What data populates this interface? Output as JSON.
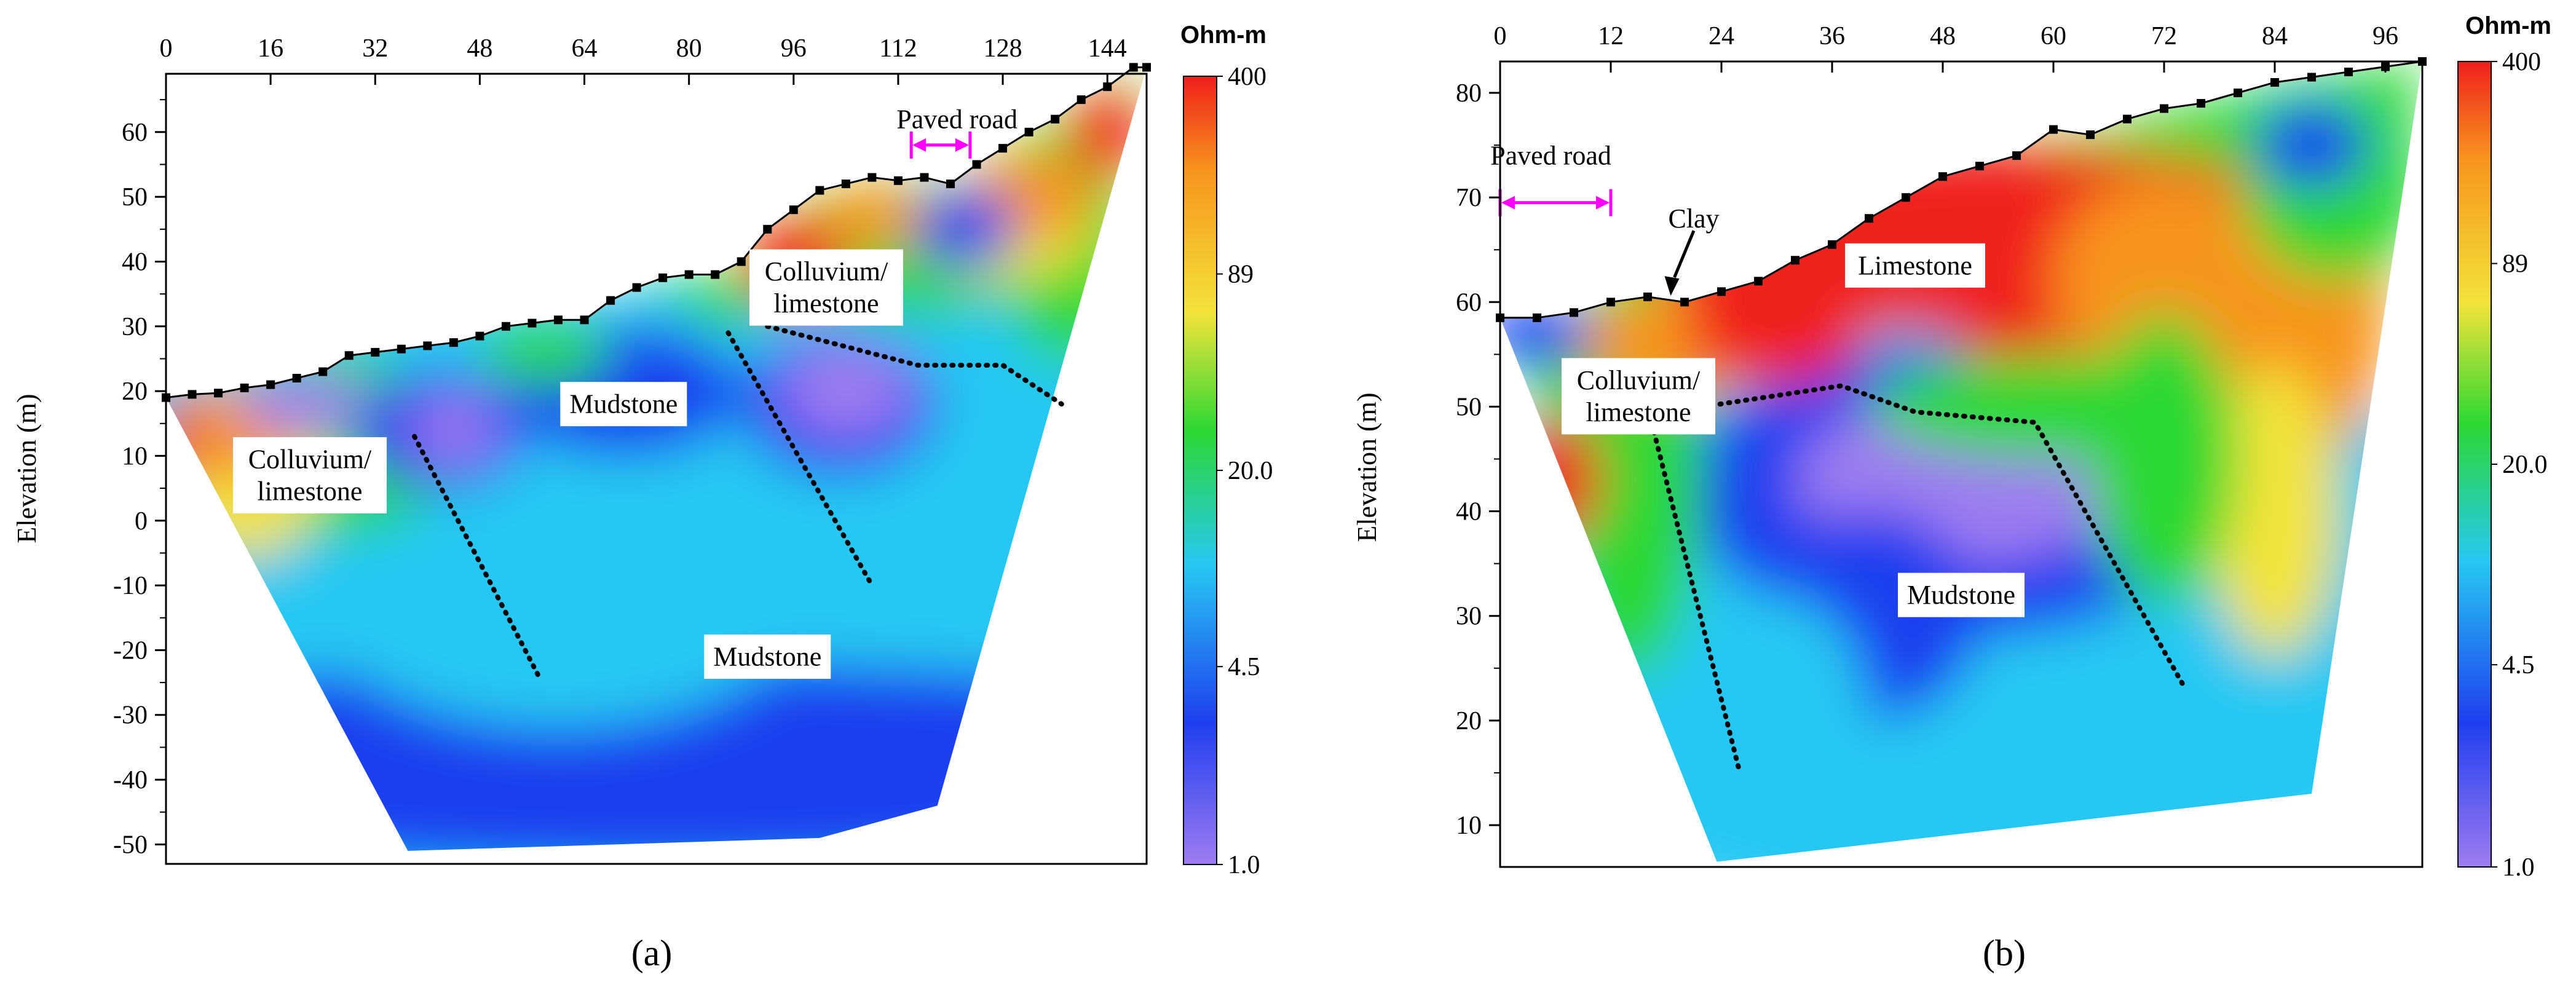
{
  "colors": {
    "violet": "#9e7bf0",
    "blue": "#1f3ff0",
    "cyan": "#27c7f2",
    "green": "#2bd832",
    "yellow": "#f2e33a",
    "orange": "#f7941d",
    "red": "#f0201c",
    "markers": "#000000",
    "road": "#ff00ff",
    "boundary": "#000000"
  },
  "chart_data": [
    {
      "type": "heatmap",
      "panel": "a",
      "caption": "(a)",
      "title": "",
      "xlabel": "",
      "ylabel": "Elevation (m)",
      "xlim": [
        0,
        150
      ],
      "ylim": [
        -53,
        69
      ],
      "x_ticks": [
        0,
        16,
        32,
        48,
        64,
        80,
        96,
        112,
        128,
        144
      ],
      "y_ticks": [
        60,
        50,
        40,
        30,
        20,
        10,
        0,
        -10,
        -20,
        -30,
        -40,
        -50
      ],
      "colorbar": {
        "unit": "Ohm-m",
        "ticks": [
          "400",
          "89",
          "20.0",
          "4.5",
          "1.0"
        ],
        "values": [
          400,
          89,
          20.0,
          4.5,
          1.0
        ],
        "scale": "log"
      },
      "surface": [
        [
          0,
          19
        ],
        [
          4,
          19.5
        ],
        [
          8,
          19.7
        ],
        [
          12,
          20.5
        ],
        [
          16,
          21
        ],
        [
          20,
          22
        ],
        [
          24,
          23
        ],
        [
          28,
          25.5
        ],
        [
          32,
          26
        ],
        [
          36,
          26.5
        ],
        [
          40,
          27
        ],
        [
          44,
          27.5
        ],
        [
          48,
          28.5
        ],
        [
          52,
          30
        ],
        [
          56,
          30.5
        ],
        [
          60,
          31
        ],
        [
          64,
          31
        ],
        [
          68,
          34
        ],
        [
          72,
          36
        ],
        [
          76,
          37.5
        ],
        [
          80,
          38
        ],
        [
          84,
          38
        ],
        [
          88,
          40
        ],
        [
          92,
          45
        ],
        [
          96,
          48
        ],
        [
          100,
          51
        ],
        [
          104,
          52
        ],
        [
          108,
          53
        ],
        [
          112,
          52.5
        ],
        [
          116,
          53
        ],
        [
          120,
          52
        ],
        [
          124,
          55
        ],
        [
          128,
          57.5
        ],
        [
          132,
          60
        ],
        [
          136,
          62
        ],
        [
          140,
          65
        ],
        [
          144,
          67
        ],
        [
          148,
          70
        ],
        [
          150,
          70
        ]
      ],
      "bottom": [
        [
          0,
          19
        ],
        [
          37,
          -51
        ],
        [
          100,
          -49
        ],
        [
          118,
          -44
        ],
        [
          150,
          70
        ]
      ],
      "annotations": [
        {
          "text": "Colluvium/ limestone",
          "x": 101,
          "y": 36
        },
        {
          "text": "Mudstone",
          "x": 70,
          "y": 18
        },
        {
          "text": "Colluvium/ limestone",
          "x": 22,
          "y": 7
        },
        {
          "text": "Mudstone",
          "x": 92,
          "y": -21
        },
        {
          "text": "Paved road",
          "x": 121,
          "y": 62
        }
      ],
      "paved_road": {
        "x": [
          114,
          123
        ],
        "y": 58
      },
      "boundaries": [
        [
          [
            92,
            30
          ],
          [
            115,
            24
          ],
          [
            128,
            24
          ],
          [
            137,
            18
          ]
        ],
        [
          [
            38,
            13
          ],
          [
            57,
            -24
          ]
        ],
        [
          [
            86,
            29
          ],
          [
            108,
            -10
          ]
        ]
      ]
    },
    {
      "type": "heatmap",
      "panel": "b",
      "caption": "(b)",
      "title": "",
      "xlabel": "",
      "ylabel": "Elevation (m)",
      "xlim": [
        0,
        100
      ],
      "ylim": [
        6,
        83
      ],
      "x_ticks": [
        0,
        12,
        24,
        36,
        48,
        60,
        72,
        84,
        96
      ],
      "y_ticks": [
        80,
        70,
        60,
        50,
        40,
        30,
        20,
        10
      ],
      "colorbar": {
        "unit": "Ohm-m",
        "ticks": [
          "400",
          "89",
          "20.0",
          "4.5",
          "1.0"
        ],
        "values": [
          400,
          89,
          20.0,
          4.5,
          1.0
        ],
        "scale": "log"
      },
      "surface": [
        [
          0,
          58.5
        ],
        [
          4,
          58.5
        ],
        [
          8,
          59
        ],
        [
          12,
          60
        ],
        [
          16,
          60.5
        ],
        [
          20,
          60
        ],
        [
          24,
          61
        ],
        [
          28,
          62
        ],
        [
          32,
          64
        ],
        [
          36,
          65.5
        ],
        [
          40,
          68
        ],
        [
          44,
          70
        ],
        [
          48,
          72
        ],
        [
          52,
          73
        ],
        [
          56,
          74
        ],
        [
          60,
          76.5
        ],
        [
          64,
          76
        ],
        [
          68,
          77.5
        ],
        [
          72,
          78.5
        ],
        [
          76,
          79
        ],
        [
          80,
          80
        ],
        [
          84,
          81
        ],
        [
          88,
          81.5
        ],
        [
          92,
          82
        ],
        [
          96,
          82.5
        ],
        [
          100,
          83
        ]
      ],
      "bottom": [
        [
          0,
          58.5
        ],
        [
          23.5,
          6.5
        ],
        [
          88,
          13
        ],
        [
          100,
          83
        ]
      ],
      "annotations": [
        {
          "text": "Limestone",
          "x": 45,
          "y": 63.5
        },
        {
          "text": "Colluvium/ limestone",
          "x": 15,
          "y": 51
        },
        {
          "text": "Mudstone",
          "x": 50,
          "y": 32
        },
        {
          "text": "Clay",
          "x": 21,
          "y": 68
        },
        {
          "text": "Paved road",
          "x": 5.5,
          "y": 74
        }
      ],
      "paved_road": {
        "x": [
          0,
          12
        ],
        "y": 69.5
      },
      "boundaries": [
        [
          [
            22,
            50
          ],
          [
            37,
            52
          ],
          [
            45,
            49.5
          ],
          [
            58,
            48.5
          ],
          [
            74,
            23.5
          ]
        ],
        [
          [
            16,
            50
          ],
          [
            26,
            15
          ]
        ]
      ]
    }
  ]
}
